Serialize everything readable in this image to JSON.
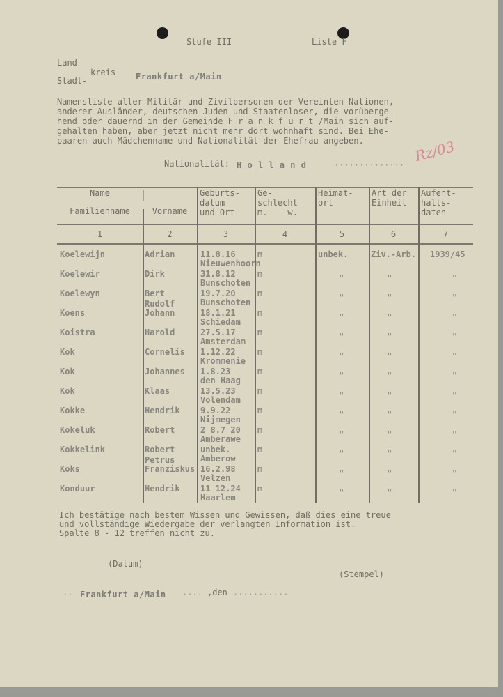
{
  "header": {
    "stufe": "Stufe III",
    "liste": "Liste F"
  },
  "kreis": {
    "land": "Land-",
    "kreis": "kreis",
    "stadt": "Stadt-",
    "value": "Frankfurt a/Main"
  },
  "intro": [
    "Namensliste aller Militär und Zivilpersonen der Vereinten Nationen,",
    "anderer Ausländer, deutschen Juden und Staatenloser, die vorüberge-",
    "hend oder dauernd in der Gemeinde F r a n k f u r t /Main sich auf-",
    "gehalten haben, aber jetzt nicht mehr dort wohnhaft sind. Bei Ehe-",
    "paaren auch Mädchenname und Nationalität der Ehefrau angeben."
  ],
  "stamp": "Rz/03",
  "nationality": {
    "label": "Nationalität:",
    "value": "H o l l a n d"
  },
  "table": {
    "headers": [
      {
        "top": "Name",
        "bottom": "Familienname"
      },
      {
        "top": "",
        "bottom": "Vorname"
      },
      {
        "top": "Geburts-\ndatum\nund-Ort",
        "bottom": ""
      },
      {
        "top": "Ge-\nschlecht\nm.    w.",
        "bottom": ""
      },
      {
        "top": "Heimat-\nort",
        "bottom": ""
      },
      {
        "top": "Art der\nEinheit",
        "bottom": ""
      },
      {
        "top": "Aufent-\nhalts-\ndaten",
        "bottom": ""
      }
    ],
    "numbers": [
      "1",
      "2",
      "3",
      "4",
      "5",
      "6",
      "7"
    ],
    "rows": [
      {
        "family": "Koelewijn",
        "first": "Adrian",
        "first2": "",
        "date": "11.8.16",
        "place": "Nieuwenhoorn",
        "sex": "m",
        "home": "unbek.",
        "unit": "Ziv.-Arb.",
        "stay": "1939/45"
      },
      {
        "family": "Koelewir",
        "first": "Dirk",
        "first2": "",
        "date": "31.8.12",
        "place": "Bunschoten",
        "sex": "m",
        "home": "\"",
        "unit": "\"",
        "stay": "\""
      },
      {
        "family": "Koelewyn",
        "first": "Bert",
        "first2": "",
        "date": "19.7.20",
        "place": "Bunschoten",
        "sex": "m",
        "home": "\"",
        "unit": "\"",
        "stay": "\""
      },
      {
        "family": "Koens",
        "first": "Johann",
        "first2": "Rudolf",
        "date": "18.1.21",
        "place": "Schiedam",
        "sex": "m",
        "home": "\"",
        "unit": "\"",
        "stay": "\""
      },
      {
        "family": "Koistra",
        "first": "Harold",
        "first2": "",
        "date": "27.5.17",
        "place": "Amsterdam",
        "sex": "m",
        "home": "\"",
        "unit": "\"",
        "stay": "\""
      },
      {
        "family": "Kok",
        "first": "Cornelis",
        "first2": "",
        "date": "1.12.22",
        "place": "Krommenie",
        "sex": "m",
        "home": "\"",
        "unit": "\"",
        "stay": "\""
      },
      {
        "family": "Kok",
        "first": "Johannes",
        "first2": "",
        "date": "1.8.23",
        "place": "den Haag",
        "sex": "m",
        "home": "\"",
        "unit": "\"",
        "stay": "\""
      },
      {
        "family": "Kok",
        "first": "Klaas",
        "first2": "",
        "date": "13.5.23",
        "place": "Volendam",
        "sex": "m",
        "home": "\"",
        "unit": "\"",
        "stay": "\""
      },
      {
        "family": "Kokke",
        "first": "Hendrik",
        "first2": "",
        "date": "9.9.22",
        "place": "Nijmegen",
        "sex": "m",
        "home": "\"",
        "unit": "\"",
        "stay": "\""
      },
      {
        "family": "Kokeluk",
        "first": "Robert",
        "first2": "",
        "date": "2 8.7 20",
        "place": "Amberawe",
        "sex": "m",
        "home": "\"",
        "unit": "\"",
        "stay": "\""
      },
      {
        "family": "Kokkelink",
        "first": "Robert",
        "first2": "",
        "date": "unbek.",
        "place": "Amberow",
        "sex": "m",
        "home": "\"",
        "unit": "\"",
        "stay": "\""
      },
      {
        "family": "Koks",
        "first": "Franziskus",
        "first2": "Petrus",
        "date": "16.2.98",
        "place": "Velzen",
        "sex": "m",
        "home": "\"",
        "unit": "\"",
        "stay": "\""
      },
      {
        "family": "Konduur",
        "first": "Hendrik",
        "first2": "",
        "date": "11 12.24",
        "place": "Haarlem",
        "sex": "m",
        "home": "\"",
        "unit": "\"",
        "stay": "\""
      }
    ]
  },
  "footer": {
    "lines": [
      "Ich bestätige nach bestem Wissen und Gewissen, daß dies eine treue",
      "und vollständige Wiedergabe der verlangten Information ist.",
      "Spalte 8 - 12 treffen nicht zu."
    ],
    "datum": "(Datum)",
    "stempel": "(Stempel)",
    "place": "Frankfurt a/Main",
    "den": ",den"
  }
}
